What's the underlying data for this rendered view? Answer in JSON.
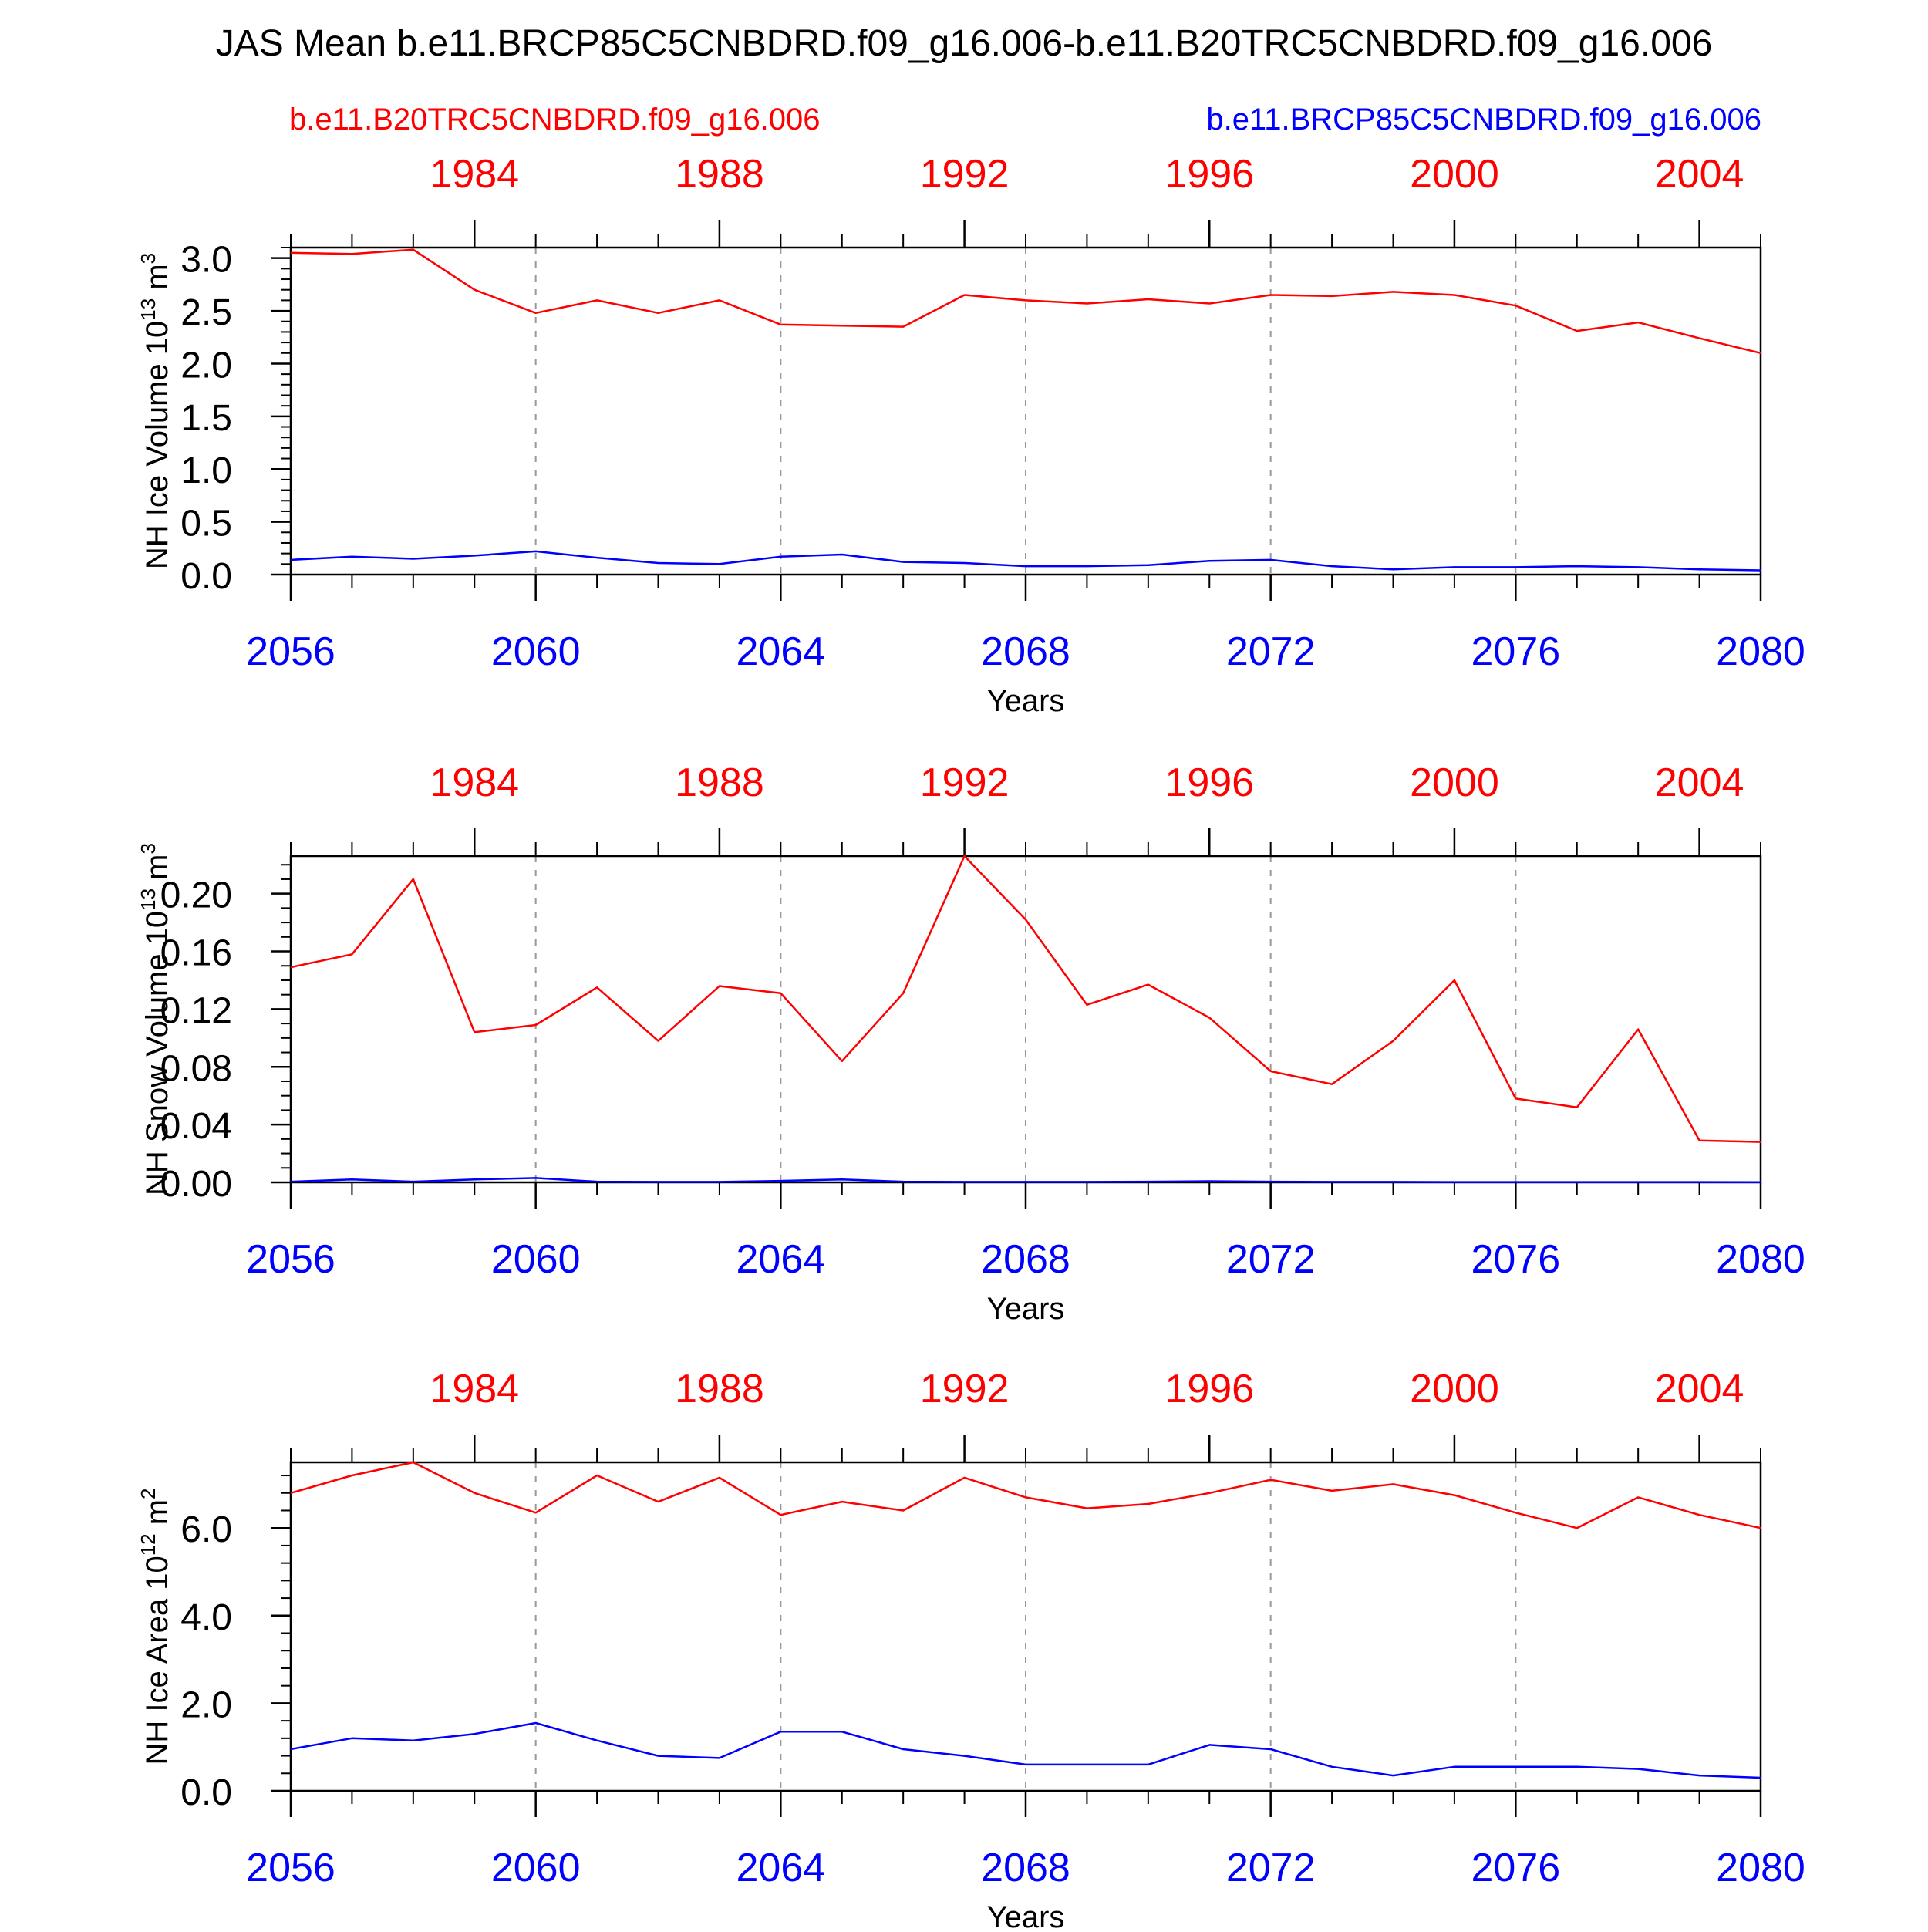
{
  "figure": {
    "title": "JAS Mean b.e11.BRCP85C5CNBDRD.f09_g16.006-b.e11.B20TRC5CNBDRD.f09_g16.006",
    "legend_left": "b.e11.B20TRC5CNBDRD.f09_g16.006",
    "legend_right": "b.e11.BRCP85C5CNBDRD.f09_g16.006",
    "colors": {
      "red": "#ff0000",
      "blue": "#0000ff",
      "axis": "#000000",
      "grid": "#999999"
    }
  },
  "chart_data": [
    {
      "type": "line",
      "ylabel": "NH Ice Volume 10",
      "ylabel_sup": "13",
      "ylabel_unit": " m",
      "ylabel_unit_sup": "3",
      "xlabel": "Years",
      "ylim": [
        0,
        3.1
      ],
      "yticks": [
        0,
        0.5,
        1.0,
        1.5,
        2.0,
        2.5,
        3.0
      ],
      "ytick_labels": [
        "0.0",
        "0.5",
        "1.0",
        "1.5",
        "2.0",
        "2.5",
        "3.0"
      ],
      "yminor_step": 0.1,
      "bottom_axis": {
        "range": [
          2056,
          2080
        ],
        "ticks": [
          2056,
          2060,
          2064,
          2068,
          2072,
          2076,
          2080
        ],
        "labels": [
          "2056",
          "2060",
          "2064",
          "2068",
          "2072",
          "2076",
          "2080"
        ]
      },
      "top_axis": {
        "range": [
          1981,
          2005
        ],
        "ticks": [
          1984,
          1988,
          1992,
          1996,
          2000,
          2004
        ],
        "labels": [
          "1984",
          "1988",
          "1992",
          "1996",
          "2000",
          "2004"
        ]
      },
      "series": [
        {
          "name": "b.e11.B20TRC5CNBDRD.f09_g16.006",
          "color": "#ff0000",
          "axis": "top",
          "x": [
            1981,
            1982,
            1983,
            1984,
            1985,
            1986,
            1987,
            1988,
            1989,
            1990,
            1991,
            1992,
            1993,
            1994,
            1995,
            1996,
            1997,
            1998,
            1999,
            2000,
            2001,
            2002,
            2003,
            2004,
            2005
          ],
          "values": [
            3.05,
            3.04,
            3.08,
            2.7,
            2.48,
            2.6,
            2.48,
            2.6,
            2.37,
            2.36,
            2.35,
            2.65,
            2.6,
            2.57,
            2.61,
            2.57,
            2.65,
            2.64,
            2.68,
            2.65,
            2.55,
            2.31,
            2.39,
            2.24,
            2.1
          ]
        },
        {
          "name": "b.e11.BRCP85C5CNBDRD.f09_g16.006",
          "color": "#0000ff",
          "axis": "bottom",
          "x": [
            2056,
            2057,
            2058,
            2059,
            2060,
            2061,
            2062,
            2063,
            2064,
            2065,
            2066,
            2067,
            2068,
            2069,
            2070,
            2071,
            2072,
            2073,
            2074,
            2075,
            2076,
            2077,
            2078,
            2079,
            2080
          ],
          "values": [
            0.14,
            0.17,
            0.15,
            0.18,
            0.22,
            0.16,
            0.11,
            0.1,
            0.17,
            0.19,
            0.12,
            0.11,
            0.08,
            0.08,
            0.09,
            0.13,
            0.14,
            0.08,
            0.05,
            0.07,
            0.07,
            0.08,
            0.07,
            0.05,
            0.04
          ]
        }
      ]
    },
    {
      "type": "line",
      "ylabel": "NH Snow Volume 10",
      "ylabel_sup": "13",
      "ylabel_unit": " m",
      "ylabel_unit_sup": "3",
      "xlabel": "Years",
      "ylim": [
        0,
        0.226
      ],
      "yticks": [
        0,
        0.04,
        0.08,
        0.12,
        0.16,
        0.2
      ],
      "ytick_labels": [
        "0.00",
        "0.04",
        "0.08",
        "0.12",
        "0.16",
        "0.20"
      ],
      "yminor_step": 0.01,
      "bottom_axis": {
        "range": [
          2056,
          2080
        ],
        "ticks": [
          2056,
          2060,
          2064,
          2068,
          2072,
          2076,
          2080
        ],
        "labels": [
          "2056",
          "2060",
          "2064",
          "2068",
          "2072",
          "2076",
          "2080"
        ]
      },
      "top_axis": {
        "range": [
          1981,
          2005
        ],
        "ticks": [
          1984,
          1988,
          1992,
          1996,
          2000,
          2004
        ],
        "labels": [
          "1984",
          "1988",
          "1992",
          "1996",
          "2000",
          "2004"
        ]
      },
      "series": [
        {
          "name": "b.e11.B20TRC5CNBDRD.f09_g16.006",
          "color": "#ff0000",
          "axis": "top",
          "x": [
            1981,
            1982,
            1983,
            1984,
            1985,
            1986,
            1987,
            1988,
            1989,
            1990,
            1991,
            1992,
            1993,
            1994,
            1995,
            1996,
            1997,
            1998,
            1999,
            2000,
            2001,
            2002,
            2003,
            2004,
            2005
          ],
          "values": [
            0.149,
            0.158,
            0.21,
            0.104,
            0.109,
            0.135,
            0.098,
            0.136,
            0.131,
            0.084,
            0.131,
            0.226,
            0.182,
            0.123,
            0.137,
            0.114,
            0.077,
            0.068,
            0.098,
            0.14,
            0.058,
            0.052,
            0.106,
            0.029,
            0.028
          ]
        },
        {
          "name": "b.e11.BRCP85C5CNBDRD.f09_g16.006",
          "color": "#0000ff",
          "axis": "bottom",
          "x": [
            2056,
            2057,
            2058,
            2059,
            2060,
            2061,
            2062,
            2063,
            2064,
            2065,
            2066,
            2067,
            2068,
            2069,
            2070,
            2071,
            2072,
            2073,
            2074,
            2075,
            2076,
            2077,
            2078,
            2079,
            2080
          ],
          "values": [
            0.0005,
            0.002,
            0.0005,
            0.002,
            0.003,
            0.0005,
            0.0003,
            0.0003,
            0.001,
            0.002,
            0.0005,
            0.0003,
            0.0003,
            0.0003,
            0.0005,
            0.0008,
            0.0005,
            0.0003,
            0.0003,
            0.0002,
            0.0002,
            0.0002,
            0.0002,
            0.0002,
            0.0001
          ]
        }
      ]
    },
    {
      "type": "line",
      "ylabel": "NH Ice Area 10",
      "ylabel_sup": "12",
      "ylabel_unit": " m",
      "ylabel_unit_sup": "2",
      "xlabel": "Years",
      "ylim": [
        0,
        7.5
      ],
      "yticks": [
        0,
        2.0,
        4.0,
        6.0
      ],
      "ytick_labels": [
        "0.0",
        "2.0",
        "4.0",
        "6.0"
      ],
      "yminor_step": 0.4,
      "bottom_axis": {
        "range": [
          2056,
          2080
        ],
        "ticks": [
          2056,
          2060,
          2064,
          2068,
          2072,
          2076,
          2080
        ],
        "labels": [
          "2056",
          "2060",
          "2064",
          "2068",
          "2072",
          "2076",
          "2080"
        ]
      },
      "top_axis": {
        "range": [
          1981,
          2005
        ],
        "ticks": [
          1984,
          1988,
          1992,
          1996,
          2000,
          2004
        ],
        "labels": [
          "1984",
          "1988",
          "1992",
          "1996",
          "2000",
          "2004"
        ]
      },
      "series": [
        {
          "name": "b.e11.B20TRC5CNBDRD.f09_g16.006",
          "color": "#ff0000",
          "axis": "top",
          "x": [
            1981,
            1982,
            1983,
            1984,
            1985,
            1986,
            1987,
            1988,
            1989,
            1990,
            1991,
            1992,
            1993,
            1994,
            1995,
            1996,
            1997,
            1998,
            1999,
            2000,
            2001,
            2002,
            2003,
            2004,
            2005
          ],
          "values": [
            6.8,
            7.2,
            7.5,
            6.8,
            6.35,
            7.2,
            6.6,
            7.15,
            6.3,
            6.6,
            6.4,
            7.15,
            6.7,
            6.45,
            6.55,
            6.8,
            7.1,
            6.85,
            7.0,
            6.75,
            6.35,
            6.0,
            6.7,
            6.3,
            6.0
          ]
        },
        {
          "name": "b.e11.BRCP85C5CNBDRD.f09_g16.006",
          "color": "#0000ff",
          "axis": "bottom",
          "x": [
            2056,
            2057,
            2058,
            2059,
            2060,
            2061,
            2062,
            2063,
            2064,
            2065,
            2066,
            2067,
            2068,
            2069,
            2070,
            2071,
            2072,
            2073,
            2074,
            2075,
            2076,
            2077,
            2078,
            2079,
            2080
          ],
          "values": [
            0.95,
            1.2,
            1.15,
            1.3,
            1.55,
            1.15,
            0.8,
            0.75,
            1.35,
            1.35,
            0.95,
            0.8,
            0.6,
            0.6,
            0.6,
            1.05,
            0.95,
            0.55,
            0.35,
            0.55,
            0.55,
            0.55,
            0.5,
            0.35,
            0.3
          ]
        }
      ]
    }
  ]
}
